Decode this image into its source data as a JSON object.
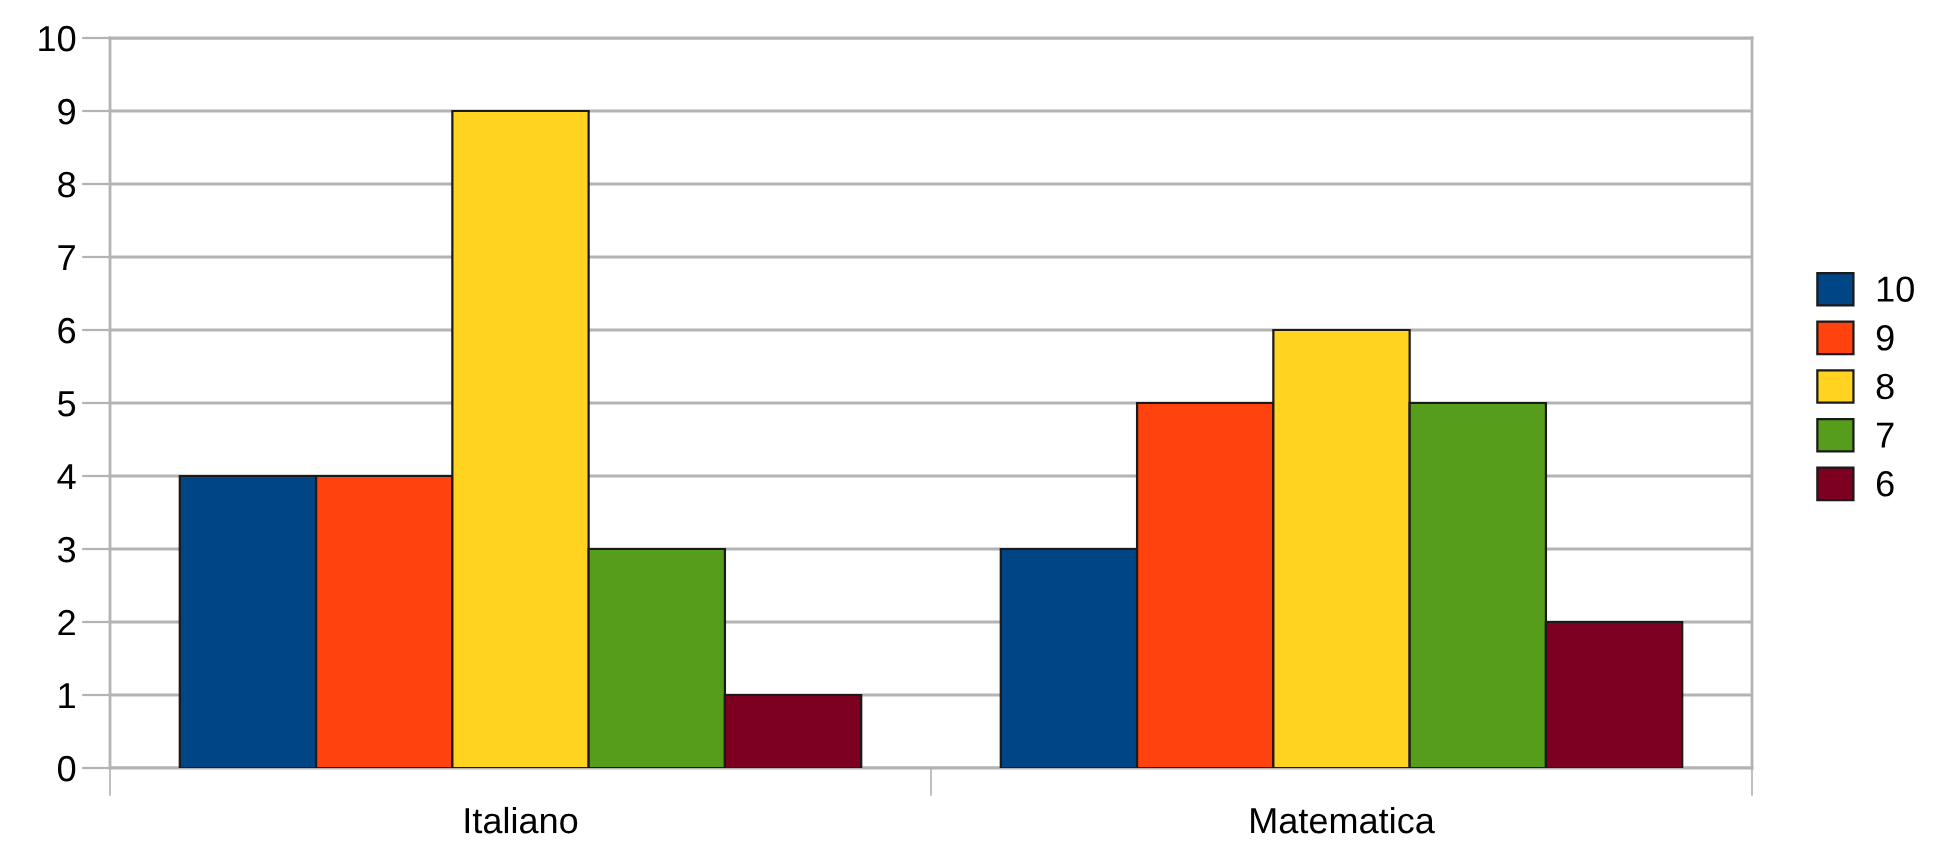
{
  "chart_data": {
    "type": "bar",
    "categories": [
      "Italiano",
      "Matematica"
    ],
    "series": [
      {
        "name": "10",
        "color": "#004586",
        "values": [
          4,
          3
        ]
      },
      {
        "name": "9",
        "color": "#ff420e",
        "values": [
          4,
          5
        ]
      },
      {
        "name": "8",
        "color": "#ffd320",
        "values": [
          9,
          6
        ]
      },
      {
        "name": "7",
        "color": "#579d1c",
        "values": [
          3,
          5
        ]
      },
      {
        "name": "6",
        "color": "#7e0021",
        "values": [
          1,
          2
        ]
      }
    ],
    "ylim": [
      0,
      10
    ],
    "yticks": [
      0,
      1,
      2,
      3,
      4,
      5,
      6,
      7,
      8,
      9,
      10
    ],
    "grid": "y",
    "legend": "right"
  }
}
